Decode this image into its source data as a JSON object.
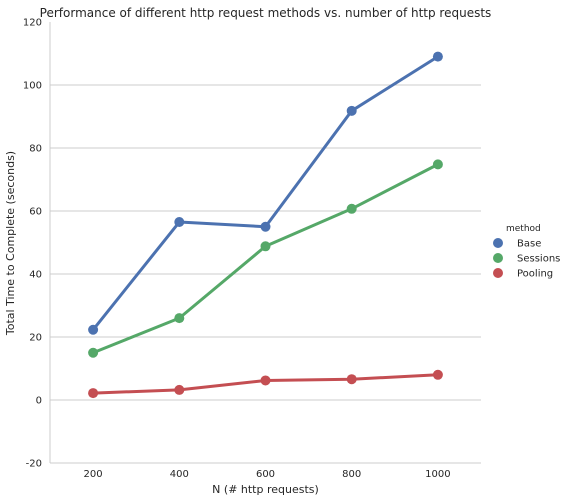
{
  "chart_data": {
    "type": "line",
    "title": "Performance of different http request methods vs. number of http requests",
    "xlabel": "N (# http requests)",
    "ylabel": "Total Time to Complete (seconds)",
    "categories": [
      200,
      400,
      600,
      800,
      1000
    ],
    "xlim": [
      100,
      1100
    ],
    "ylim": [
      -20,
      120
    ],
    "yticks": [
      -20,
      0,
      20,
      40,
      60,
      80,
      100,
      120
    ],
    "grid": "horizontal",
    "legend_title": "method",
    "legend_position": "right",
    "series": [
      {
        "name": "Base",
        "color": "#4c72b0",
        "values": [
          22.3,
          56.5,
          55.0,
          91.8,
          109.0
        ]
      },
      {
        "name": "Sessions",
        "color": "#55a868",
        "values": [
          15.0,
          26.0,
          48.8,
          60.7,
          74.8
        ]
      },
      {
        "name": "Pooling",
        "color": "#c44e52",
        "values": [
          2.2,
          3.2,
          6.2,
          6.6,
          8.0
        ]
      }
    ]
  }
}
